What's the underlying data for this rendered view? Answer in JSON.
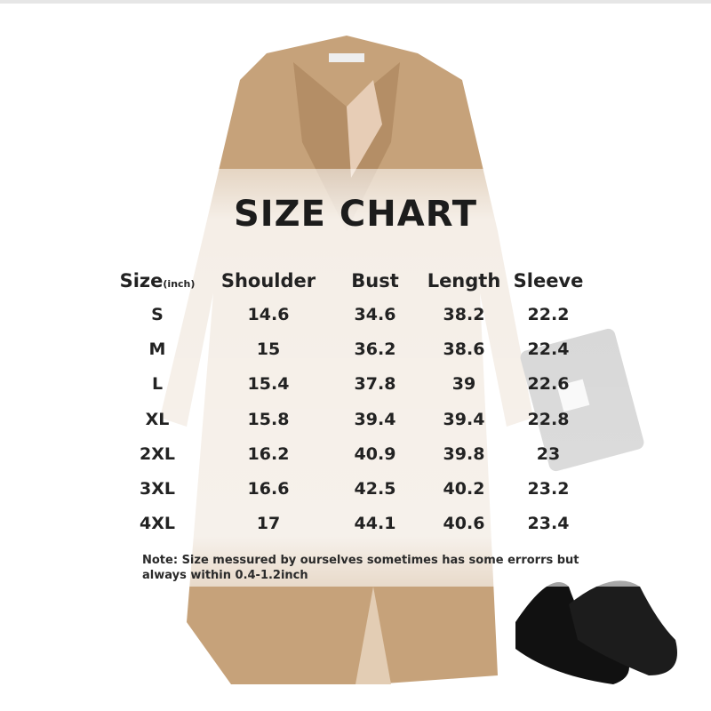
{
  "title": "SIZE CHART",
  "headers": {
    "size": "Size",
    "unit": "(inch)",
    "shoulder": "Shoulder",
    "bust": "Bust",
    "length": "Length",
    "sleeve": "Sleeve"
  },
  "rows": [
    [
      "S",
      "14.6",
      "34.6",
      "38.2",
      "22.2"
    ],
    [
      "M",
      "15",
      "36.2",
      "38.6",
      "22.4"
    ],
    [
      "L",
      "15.4",
      "37.8",
      "39",
      "22.6"
    ],
    [
      "XL",
      "15.8",
      "39.4",
      "39.4",
      "22.8"
    ],
    [
      "2XL",
      "16.2",
      "40.9",
      "39.8",
      "23"
    ],
    [
      "3XL",
      "16.6",
      "42.5",
      "40.2",
      "23.2"
    ],
    [
      "4XL",
      "17",
      "44.1",
      "40.6",
      "23.4"
    ]
  ],
  "note": "Note:  Size messured by ourselves sometimes has some errorrs but always within 0.4-1.2inch",
  "colors": {
    "coat": "#c6a27a",
    "text": "#222222",
    "accessory": "#111111"
  }
}
